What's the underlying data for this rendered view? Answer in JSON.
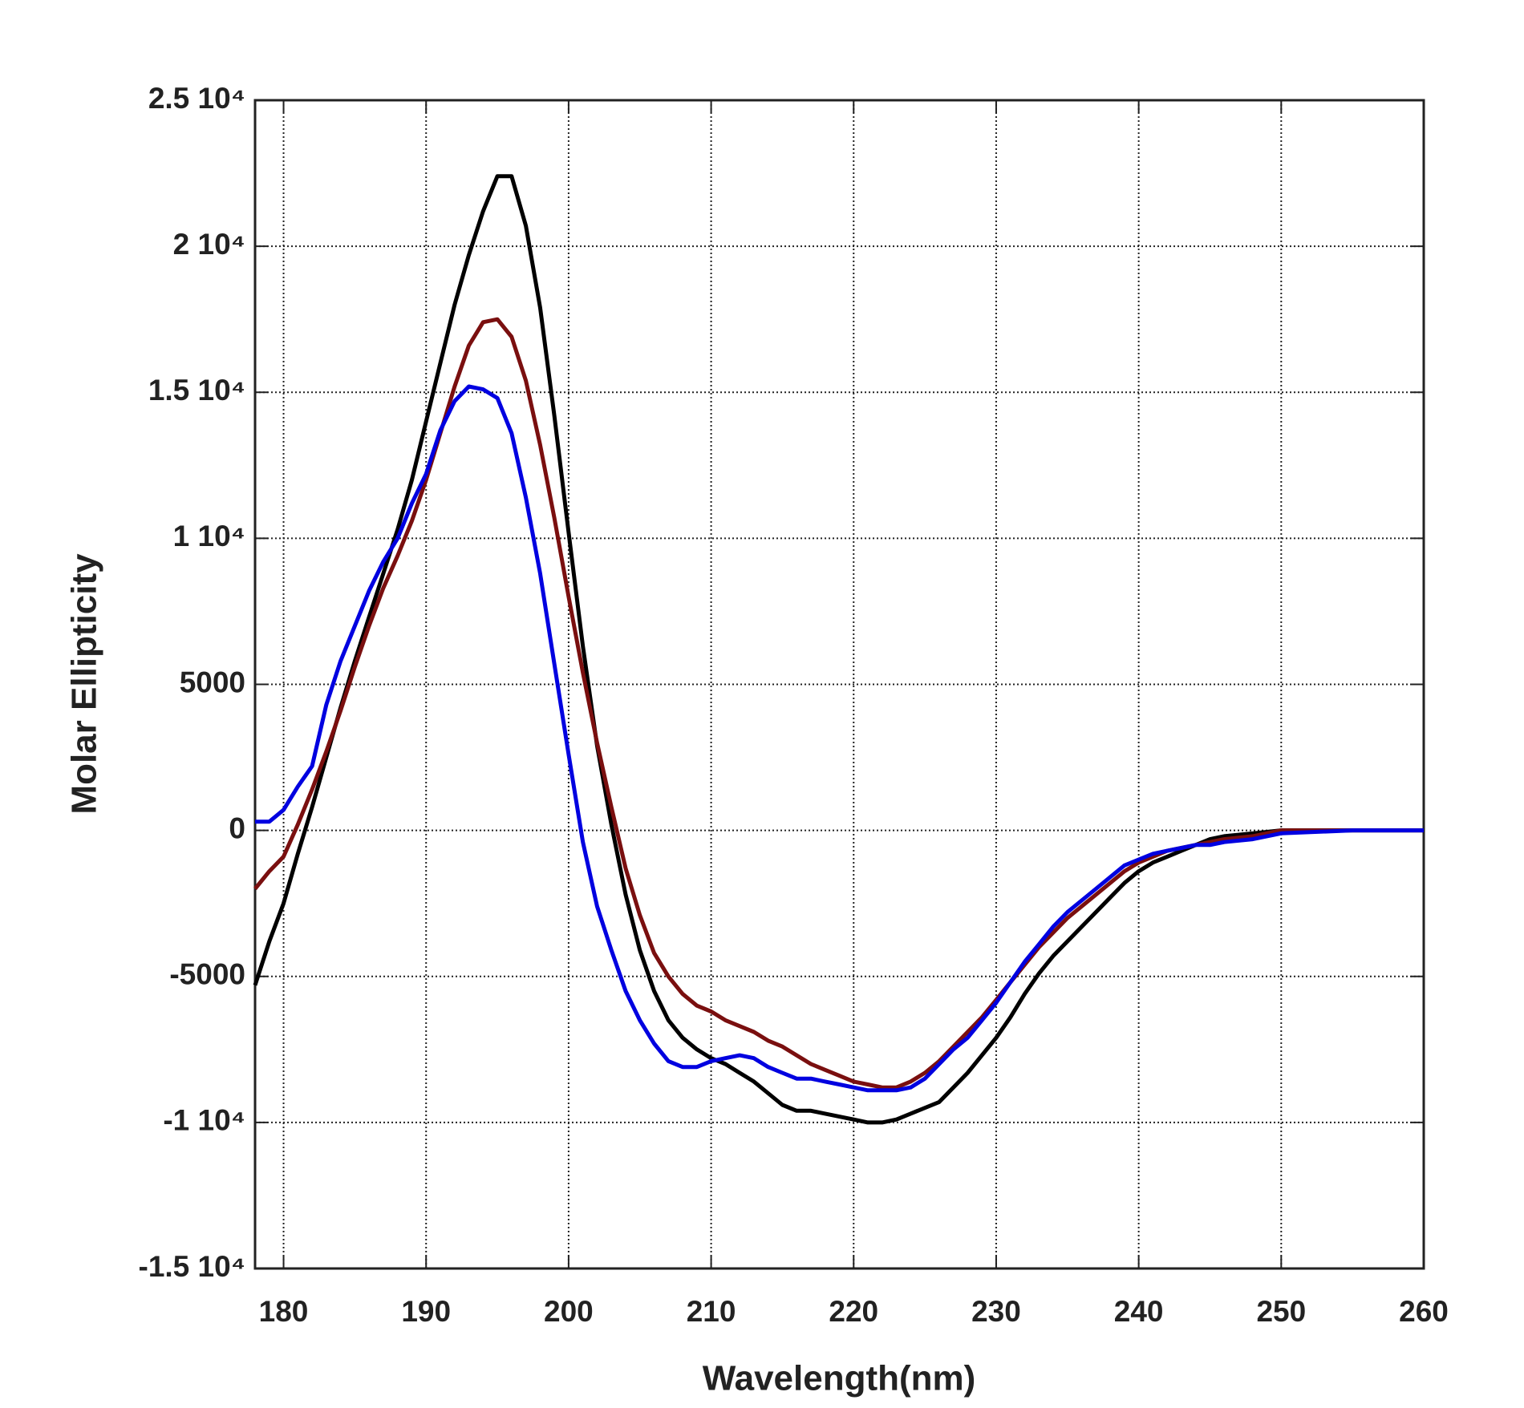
{
  "chart_data": {
    "type": "line",
    "x_label": "Wavelength(nm)",
    "y_label": "Molar Ellipticity",
    "x": [
      178,
      179,
      180,
      181,
      182,
      183,
      184,
      185,
      186,
      187,
      188,
      189,
      190,
      191,
      192,
      193,
      194,
      195,
      196,
      197,
      198,
      199,
      200,
      201,
      202,
      203,
      204,
      205,
      206,
      207,
      208,
      209,
      210,
      211,
      212,
      213,
      214,
      215,
      216,
      217,
      218,
      219,
      220,
      221,
      222,
      223,
      224,
      225,
      226,
      227,
      228,
      229,
      230,
      231,
      232,
      233,
      234,
      235,
      236,
      237,
      238,
      239,
      240,
      241,
      242,
      243,
      244,
      245,
      246,
      248,
      250,
      255,
      260
    ],
    "series": [
      {
        "color": "#000000",
        "values": [
          -5300,
          -3800,
          -2500,
          -800,
          800,
          2500,
          4200,
          5800,
          7300,
          8800,
          10300,
          12000,
          14000,
          16000,
          18000,
          19700,
          21200,
          22400,
          22400,
          20700,
          17900,
          14200,
          10200,
          6300,
          2900,
          200,
          -2200,
          -4100,
          -5500,
          -6500,
          -7100,
          -7500,
          -7800,
          -8000,
          -8300,
          -8600,
          -9000,
          -9400,
          -9600,
          -9600,
          -9700,
          -9800,
          -9900,
          -10000,
          -10000,
          -9900,
          -9700,
          -9500,
          -9300,
          -8800,
          -8300,
          -7700,
          -7100,
          -6400,
          -5600,
          -4900,
          -4300,
          -3800,
          -3300,
          -2800,
          -2300,
          -1800,
          -1400,
          -1100,
          -900,
          -700,
          -500,
          -300,
          -200,
          -100,
          0,
          0,
          0
        ]
      },
      {
        "color": "#7a0f0f",
        "values": [
          -2000,
          -1400,
          -900,
          200,
          1400,
          2700,
          4100,
          5600,
          7000,
          8300,
          9400,
          10600,
          12000,
          13600,
          15200,
          16600,
          17400,
          17500,
          16900,
          15400,
          13200,
          10700,
          8000,
          5400,
          3000,
          800,
          -1300,
          -2900,
          -4200,
          -5000,
          -5600,
          -6000,
          -6200,
          -6500,
          -6700,
          -6900,
          -7200,
          -7400,
          -7700,
          -8000,
          -8200,
          -8400,
          -8600,
          -8700,
          -8800,
          -8800,
          -8600,
          -8300,
          -7900,
          -7400,
          -6900,
          -6400,
          -5800,
          -5200,
          -4600,
          -4000,
          -3500,
          -3000,
          -2600,
          -2200,
          -1800,
          -1400,
          -1100,
          -900,
          -700,
          -600,
          -500,
          -400,
          -300,
          -200,
          0,
          0,
          0
        ]
      },
      {
        "color": "#0000e0",
        "values": [
          300,
          300,
          700,
          1500,
          2200,
          4300,
          5800,
          7000,
          8200,
          9200,
          10000,
          11200,
          12200,
          13700,
          14700,
          15200,
          15100,
          14800,
          13600,
          11400,
          8800,
          5700,
          2600,
          -400,
          -2600,
          -4100,
          -5500,
          -6500,
          -7300,
          -7900,
          -8100,
          -8100,
          -7900,
          -7800,
          -7700,
          -7800,
          -8100,
          -8300,
          -8500,
          -8500,
          -8600,
          -8700,
          -8800,
          -8900,
          -8900,
          -8900,
          -8800,
          -8500,
          -8000,
          -7500,
          -7100,
          -6500,
          -5900,
          -5200,
          -4500,
          -3900,
          -3300,
          -2800,
          -2400,
          -2000,
          -1600,
          -1200,
          -1000,
          -800,
          -700,
          -600,
          -500,
          -500,
          -400,
          -300,
          -100,
          0,
          0
        ]
      }
    ],
    "xlim": [
      178,
      260
    ],
    "xticks": [
      180,
      190,
      200,
      210,
      220,
      230,
      240,
      250,
      260
    ],
    "ylim": [
      -15000,
      25000
    ],
    "yticks": [
      {
        "value": -15000,
        "label": "-1.5 10⁴"
      },
      {
        "value": -10000,
        "label": "-1 10⁴"
      },
      -5000,
      0,
      5000,
      {
        "value": 10000,
        "label": "1 10⁴"
      },
      {
        "value": 15000,
        "label": "1.5 10⁴"
      },
      {
        "value": 20000,
        "label": "2 10⁴"
      },
      {
        "value": 25000,
        "label": "2.5 10⁴"
      }
    ],
    "grid": true
  }
}
